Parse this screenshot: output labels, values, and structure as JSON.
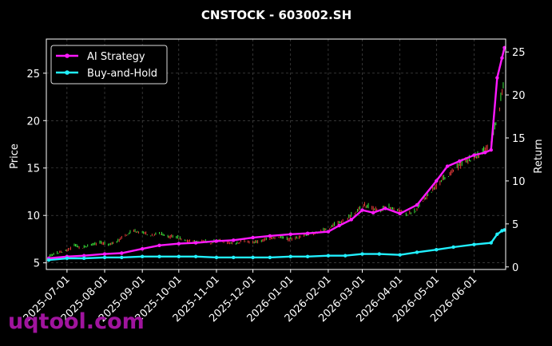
{
  "watermark": "uqtool.com",
  "chart_data": {
    "type": "line",
    "title": "CNSTOCK - 603002.SH",
    "ylabel_left": "Price",
    "ylabel_right": "Return",
    "x_ticks": [
      "2025-07-01",
      "2025-08-01",
      "2025-09-01",
      "2025-10-01",
      "2025-11-01",
      "2025-12-01",
      "2026-01-01",
      "2026-02-01",
      "2026-03-01",
      "2026-04-01",
      "2026-05-01",
      "2026-06-01"
    ],
    "x_range": [
      "2025-06-14",
      "2026-06-27"
    ],
    "y_left_ticks": [
      5,
      10,
      15,
      20,
      25
    ],
    "y_left_range": [
      4.3,
      28.6
    ],
    "y_right_ticks": [
      0,
      5,
      10,
      15,
      20,
      25
    ],
    "y_right_range": [
      -0.3,
      26.5
    ],
    "grid": true,
    "legend_position": "top-left",
    "colors": {
      "ai": "#ff19ff",
      "bh": "#21f0ff",
      "up": "#40ff40",
      "down": "#ff4040"
    },
    "series": [
      {
        "name": "AI Strategy",
        "x": [
          "2025-06-16",
          "2025-07-01",
          "2025-07-15",
          "2025-08-01",
          "2025-08-15",
          "2025-09-01",
          "2025-09-15",
          "2025-10-01",
          "2025-10-15",
          "2025-11-01",
          "2025-11-15",
          "2025-12-01",
          "2025-12-15",
          "2026-01-01",
          "2026-01-15",
          "2026-02-01",
          "2026-02-10",
          "2026-02-20",
          "2026-03-01",
          "2026-03-10",
          "2026-03-20",
          "2026-04-01",
          "2026-04-15",
          "2026-05-01",
          "2026-05-10",
          "2026-05-20",
          "2026-06-01",
          "2026-06-10",
          "2026-06-15",
          "2026-06-20",
          "2026-06-24",
          "2026-06-26"
        ],
        "values": [
          1.0,
          1.2,
          1.3,
          1.5,
          1.6,
          2.1,
          2.5,
          2.7,
          2.8,
          3.0,
          3.1,
          3.4,
          3.6,
          3.8,
          3.9,
          4.1,
          4.8,
          5.5,
          6.6,
          6.3,
          6.8,
          6.2,
          7.2,
          10.0,
          11.7,
          12.3,
          13.0,
          13.3,
          13.6,
          22.0,
          24.3,
          25.5
        ]
      },
      {
        "name": "Buy-and-Hold",
        "x": [
          "2025-06-16",
          "2025-07-01",
          "2025-07-15",
          "2025-08-01",
          "2025-08-15",
          "2025-09-01",
          "2025-09-15",
          "2025-10-01",
          "2025-10-15",
          "2025-11-01",
          "2025-11-15",
          "2025-12-01",
          "2025-12-15",
          "2026-01-01",
          "2026-01-15",
          "2026-02-01",
          "2026-02-15",
          "2026-03-01",
          "2026-03-15",
          "2026-04-01",
          "2026-04-15",
          "2026-05-01",
          "2026-05-15",
          "2026-06-01",
          "2026-06-15",
          "2026-06-20",
          "2026-06-24",
          "2026-06-26"
        ],
        "values": [
          0.8,
          1.0,
          1.0,
          1.1,
          1.1,
          1.2,
          1.2,
          1.2,
          1.2,
          1.1,
          1.1,
          1.1,
          1.1,
          1.2,
          1.2,
          1.3,
          1.3,
          1.5,
          1.5,
          1.4,
          1.7,
          2.0,
          2.3,
          2.6,
          2.8,
          3.8,
          4.2,
          4.3
        ]
      }
    ],
    "price_data": {
      "x": [
        "2025-06-16",
        "2025-06-23",
        "2025-06-30",
        "2025-07-07",
        "2025-07-14",
        "2025-07-21",
        "2025-07-28",
        "2025-08-04",
        "2025-08-11",
        "2025-08-18",
        "2025-08-25",
        "2025-09-01",
        "2025-09-08",
        "2025-09-15",
        "2025-09-22",
        "2025-09-29",
        "2025-10-06",
        "2025-10-13",
        "2025-10-20",
        "2025-10-27",
        "2025-11-03",
        "2025-11-10",
        "2025-11-17",
        "2025-11-24",
        "2025-12-01",
        "2025-12-08",
        "2025-12-15",
        "2025-12-22",
        "2025-12-29",
        "2026-01-05",
        "2026-01-12",
        "2026-01-19",
        "2026-01-26",
        "2026-02-02",
        "2026-02-09",
        "2026-02-16",
        "2026-02-23",
        "2026-03-02",
        "2026-03-09",
        "2026-03-16",
        "2026-03-23",
        "2026-03-30",
        "2026-04-06",
        "2026-04-13",
        "2026-04-20",
        "2026-04-27",
        "2026-05-04",
        "2026-05-11",
        "2026-05-18",
        "2026-05-25",
        "2026-06-01",
        "2026-06-08",
        "2026-06-15",
        "2026-06-22",
        "2026-06-26"
      ],
      "price": [
        5.7,
        6.0,
        6.3,
        6.8,
        6.6,
        6.9,
        7.1,
        6.9,
        7.2,
        7.9,
        8.4,
        8.2,
        7.9,
        8.1,
        7.8,
        7.7,
        7.4,
        7.2,
        7.3,
        7.1,
        7.4,
        7.2,
        7.0,
        7.4,
        7.1,
        7.3,
        7.6,
        7.8,
        7.5,
        7.6,
        7.9,
        8.1,
        8.3,
        8.7,
        9.2,
        9.6,
        10.3,
        11.1,
        10.8,
        10.5,
        10.9,
        10.6,
        10.1,
        10.4,
        11.6,
        12.6,
        13.6,
        14.3,
        15.2,
        15.7,
        16.1,
        16.6,
        17.4,
        21.5,
        24.5
      ]
    }
  }
}
